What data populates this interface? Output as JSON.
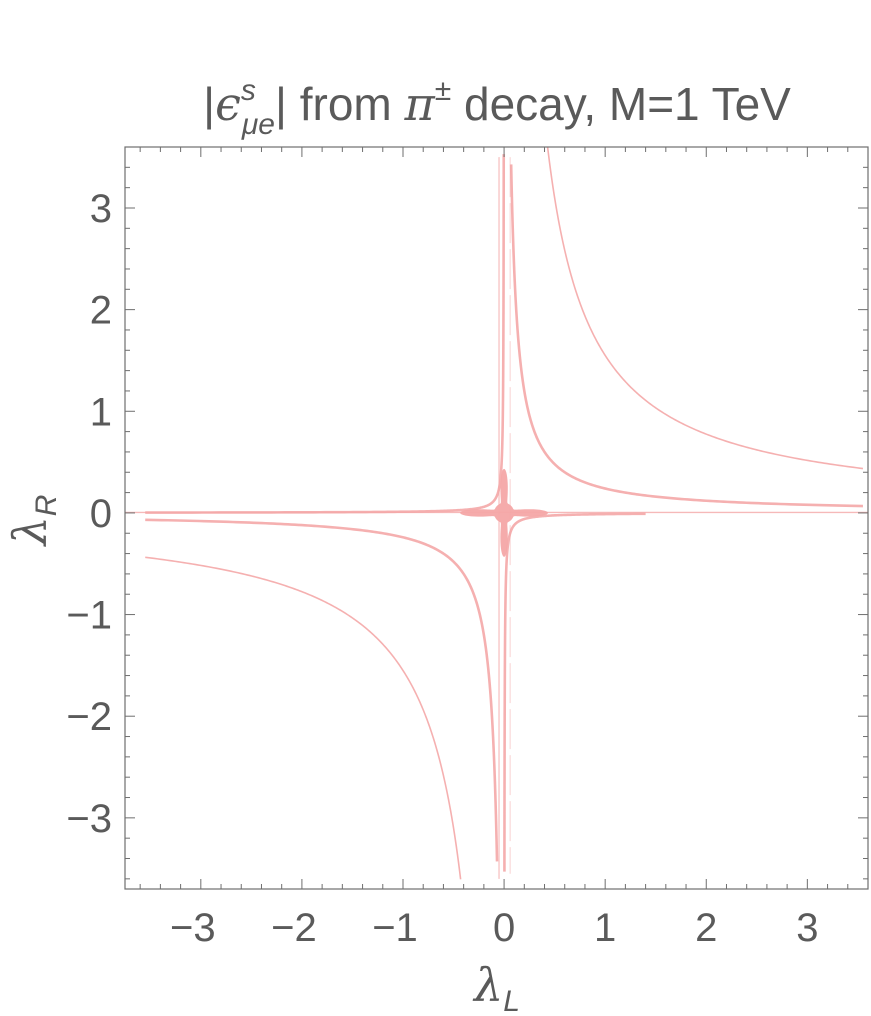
{
  "chart_data": {
    "type": "contour",
    "title_parts": {
      "abs_open": "|",
      "symbol": "ϵ",
      "superscript": "s",
      "subscript": "μe",
      "abs_close": "|",
      "text": " from ",
      "pi": "π",
      "pi_superscript": "±",
      "rest": " decay, M=1 TeV"
    },
    "xlabel": {
      "symbol": "λ",
      "subscript": "L"
    },
    "ylabel": {
      "symbol": "λ",
      "subscript": "R"
    },
    "xlim": [
      -3.75,
      3.6
    ],
    "ylim": [
      -3.7,
      3.6
    ],
    "xticks": [
      {
        "value": -3,
        "label": "−3"
      },
      {
        "value": -2,
        "label": "−2"
      },
      {
        "value": -1,
        "label": "−1"
      },
      {
        "value": 0,
        "label": "0"
      },
      {
        "value": 1,
        "label": "1"
      },
      {
        "value": 2,
        "label": "2"
      },
      {
        "value": 3,
        "label": "3"
      }
    ],
    "yticks": [
      {
        "value": 3,
        "label": "3"
      },
      {
        "value": 2,
        "label": "2"
      },
      {
        "value": 1,
        "label": "1"
      },
      {
        "value": 0,
        "label": "0"
      },
      {
        "value": -1,
        "label": "−1"
      },
      {
        "value": -2,
        "label": "−2"
      },
      {
        "value": -3,
        "label": "−3"
      }
    ],
    "region_color": "#f4a7a7",
    "frame_color": "#6e6e6e",
    "contours": [
      {
        "relation": "λL·λR = c",
        "c": 1.55,
        "branches": [
          {
            "x_from": 0.43,
            "x_to": 3.55
          },
          {
            "x_from": -3.55,
            "x_to": -0.43
          }
        ]
      },
      {
        "relation": "λL·λR = c",
        "c": 0.24,
        "branches": [
          {
            "x_from": 0.07,
            "x_to": 3.55
          },
          {
            "x_from": -3.55,
            "x_to": -0.07
          }
        ]
      },
      {
        "relation": "λL·λR = c",
        "c": -0.012,
        "branches": [
          {
            "x_from": 0.0034,
            "x_to": 1.4
          },
          {
            "x_from": -3.55,
            "x_to": -0.0034
          }
        ]
      }
    ],
    "central_blob": {
      "x": 0,
      "y": 0
    }
  }
}
